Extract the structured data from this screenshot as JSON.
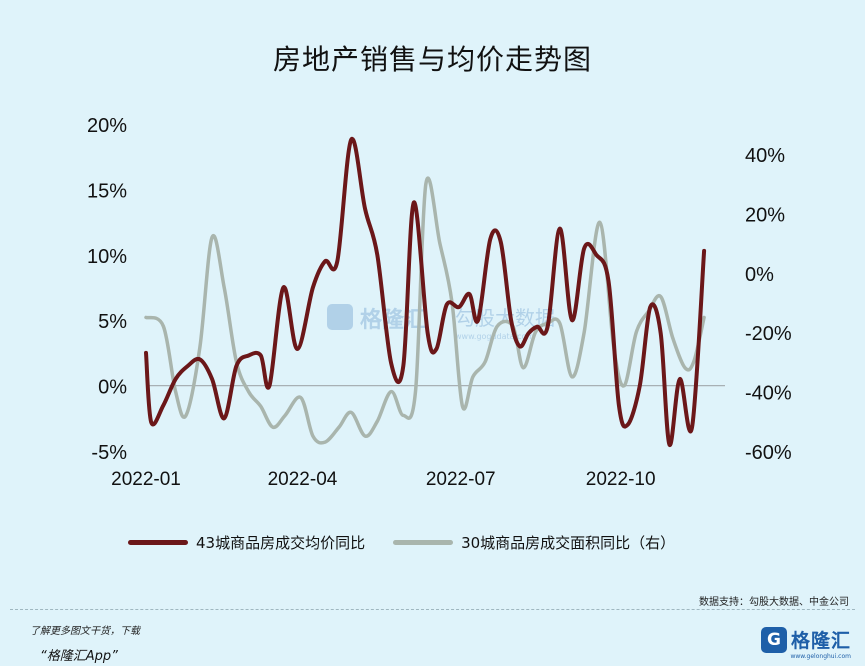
{
  "title": "房地产销售与均价走势图",
  "chart_data": {
    "type": "line",
    "x_ticks": [
      "2022-01",
      "2022-04",
      "2022-07",
      "2022-10"
    ],
    "x_range": [
      "2022-01-01",
      "2022-11-30"
    ],
    "y_left": {
      "ticks": [
        "-5%",
        "0%",
        "5%",
        "10%",
        "15%",
        "20%"
      ],
      "range": [
        -5,
        20
      ]
    },
    "y_right": {
      "ticks": [
        "-60%",
        "-40%",
        "-20%",
        "0%",
        "20%",
        "40%"
      ],
      "range": [
        -60,
        40
      ]
    },
    "zero_line": true,
    "grid": false,
    "legend_position": "bottom",
    "series": [
      {
        "name": "43城商品房成交均价同比",
        "axis": "left",
        "color": "#6b1719",
        "points": [
          [
            "2022-01-01",
            2.5
          ],
          [
            "2022-01-04",
            -2.8
          ],
          [
            "2022-01-11",
            -1.5
          ],
          [
            "2022-01-18",
            0.5
          ],
          [
            "2022-01-25",
            1.5
          ],
          [
            "2022-02-01",
            2.0
          ],
          [
            "2022-02-08",
            0.5
          ],
          [
            "2022-02-15",
            -2.5
          ],
          [
            "2022-02-22",
            1.5
          ],
          [
            "2022-03-01",
            2.3
          ],
          [
            "2022-03-08",
            2.3
          ],
          [
            "2022-03-13",
            0.0
          ],
          [
            "2022-03-21",
            7.5
          ],
          [
            "2022-03-29",
            2.8
          ],
          [
            "2022-04-07",
            7.5
          ],
          [
            "2022-04-14",
            9.5
          ],
          [
            "2022-04-21",
            9.5
          ],
          [
            "2022-04-29",
            18.8
          ],
          [
            "2022-05-07",
            13.5
          ],
          [
            "2022-05-14",
            10.0
          ],
          [
            "2022-05-22",
            1.7
          ],
          [
            "2022-05-29",
            1.5
          ],
          [
            "2022-06-04",
            14.0
          ],
          [
            "2022-06-12",
            4.0
          ],
          [
            "2022-06-17",
            2.8
          ],
          [
            "2022-06-23",
            6.2
          ],
          [
            "2022-06-30",
            6.0
          ],
          [
            "2022-07-06",
            7.0
          ],
          [
            "2022-07-11",
            5.0
          ],
          [
            "2022-07-18",
            11.2
          ],
          [
            "2022-07-24",
            11.0
          ],
          [
            "2022-07-30",
            5.0
          ],
          [
            "2022-08-04",
            3.0
          ],
          [
            "2022-08-09",
            4.0
          ],
          [
            "2022-08-14",
            4.5
          ],
          [
            "2022-08-20",
            4.5
          ],
          [
            "2022-08-27",
            12.0
          ],
          [
            "2022-09-03",
            5.0
          ],
          [
            "2022-09-10",
            10.5
          ],
          [
            "2022-09-17",
            10.0
          ],
          [
            "2022-09-24",
            8.0
          ],
          [
            "2022-09-30",
            -1.5
          ],
          [
            "2022-10-05",
            -3.0
          ],
          [
            "2022-10-12",
            0.0
          ],
          [
            "2022-10-18",
            6.0
          ],
          [
            "2022-10-24",
            4.0
          ],
          [
            "2022-10-29",
            -4.5
          ],
          [
            "2022-11-04",
            0.5
          ],
          [
            "2022-11-11",
            -3.2
          ],
          [
            "2022-11-18",
            10.3
          ]
        ]
      },
      {
        "name": "30城商品房成交面积同比（右）",
        "axis": "right",
        "color": "#a9b5ad",
        "points": [
          [
            "2022-01-01",
            -15
          ],
          [
            "2022-01-11",
            -18
          ],
          [
            "2022-01-18",
            -40
          ],
          [
            "2022-01-24",
            -48
          ],
          [
            "2022-02-01",
            -25
          ],
          [
            "2022-02-08",
            12
          ],
          [
            "2022-02-15",
            -5
          ],
          [
            "2022-02-22",
            -30
          ],
          [
            "2022-03-01",
            -40
          ],
          [
            "2022-03-08",
            -45
          ],
          [
            "2022-03-15",
            -52
          ],
          [
            "2022-03-22",
            -48
          ],
          [
            "2022-03-31",
            -42
          ],
          [
            "2022-04-07",
            -55
          ],
          [
            "2022-04-14",
            -57
          ],
          [
            "2022-04-22",
            -52
          ],
          [
            "2022-04-29",
            -47
          ],
          [
            "2022-05-07",
            -55
          ],
          [
            "2022-05-14",
            -50
          ],
          [
            "2022-05-22",
            -40
          ],
          [
            "2022-05-29",
            -48
          ],
          [
            "2022-06-05",
            -40
          ],
          [
            "2022-06-11",
            30
          ],
          [
            "2022-06-19",
            10
          ],
          [
            "2022-06-26",
            -10
          ],
          [
            "2022-07-02",
            -45
          ],
          [
            "2022-07-08",
            -35
          ],
          [
            "2022-07-15",
            -30
          ],
          [
            "2022-07-22",
            -18
          ],
          [
            "2022-07-31",
            -18
          ],
          [
            "2022-08-06",
            -32
          ],
          [
            "2022-08-13",
            -20
          ],
          [
            "2022-08-20",
            -17
          ],
          [
            "2022-08-27",
            -17
          ],
          [
            "2022-09-03",
            -35
          ],
          [
            "2022-09-10",
            -20
          ],
          [
            "2022-09-19",
            17
          ],
          [
            "2022-09-27",
            -25
          ],
          [
            "2022-10-03",
            -38
          ],
          [
            "2022-10-10",
            -20
          ],
          [
            "2022-10-17",
            -13
          ],
          [
            "2022-10-24",
            -8
          ],
          [
            "2022-10-31",
            -22
          ],
          [
            "2022-11-07",
            -32
          ],
          [
            "2022-11-12",
            -30
          ],
          [
            "2022-11-18",
            -15
          ]
        ]
      }
    ]
  },
  "legend": {
    "series1_label": "43城商品房成交均价同比",
    "series2_label": "30城商品房成交面积同比（右）"
  },
  "watermark": {
    "left_text": "格隆汇",
    "right_text": "勾股大数据",
    "url": "www.gogudata.com"
  },
  "source": "数据支持：勾股大数据、中金公司",
  "footer": {
    "note": "了解更多图文干货，下载",
    "app": "“格隆汇App”",
    "brand": "格隆汇",
    "brand_sub": "www.gelonghui.com"
  }
}
